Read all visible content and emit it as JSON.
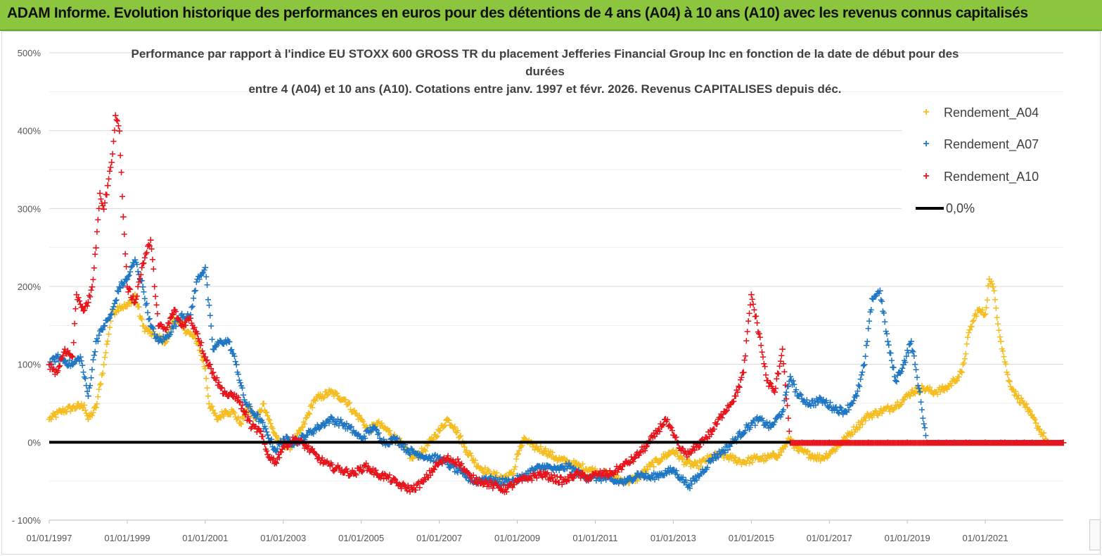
{
  "banner": {
    "title": "ADAM Informe. Evolution historique des performances en euros pour des détentions de 4 ans (A04) à 10 ans (A10) avec les revenus connus capitalisés"
  },
  "chart_data": {
    "type": "scatter",
    "title_lines": [
      "Performance par rapport à l'indice EU STOXX 600 GROSS TR  du placement Jefferies Financial Group Inc en fonction de la date de début pour des",
      "durées",
      "entre 4 (A04) et 10 ans (A10). Cotations entre janv. 1997 et févr. 2026. Revenus CAPITALISES depuis déc."
    ],
    "xlabel": "",
    "ylabel": "",
    "x_range": [
      1997.0,
      2023.0
    ],
    "ylim": [
      -100,
      500
    ],
    "yticks": [
      -100,
      0,
      100,
      200,
      300,
      400,
      500
    ],
    "ytick_labels": [
      "- 100%",
      "0%",
      "100%",
      "200%",
      "300%",
      "400%",
      "500%"
    ],
    "xticks": [
      1997,
      1999,
      2001,
      2003,
      2005,
      2007,
      2009,
      2011,
      2013,
      2015,
      2017,
      2019,
      2021
    ],
    "xtick_labels": [
      "01/01/1997",
      "01/01/1999",
      "01/01/2001",
      "01/01/2003",
      "01/01/2005",
      "01/01/2007",
      "01/01/2009",
      "01/01/2011",
      "01/01/2013",
      "01/01/2015",
      "01/01/2017",
      "01/01/2019",
      "01/01/2021"
    ],
    "grid": true,
    "legend_position": "top-right",
    "series": [
      {
        "name": "Rendement_A04",
        "color": "#f5bd1f",
        "marker": "+",
        "x": [
          1997.0,
          1997.3,
          1997.6,
          1997.9,
          1998.0,
          1998.2,
          1998.4,
          1998.6,
          1998.8,
          1999.0,
          1999.2,
          1999.4,
          1999.6,
          1999.8,
          2000.0,
          2000.2,
          2000.4,
          2000.6,
          2000.8,
          2001.0,
          2001.1,
          2001.3,
          2001.5,
          2001.7,
          2001.9,
          2002.1,
          2002.3,
          2002.5,
          2002.7,
          2002.9,
          2003.2,
          2003.5,
          2003.8,
          2004.0,
          2004.2,
          2004.4,
          2004.6,
          2004.8,
          2005.0,
          2005.2,
          2005.4,
          2005.7,
          2006.0,
          2006.3,
          2006.6,
          2006.9,
          2007.0,
          2007.2,
          2007.4,
          2007.7,
          2008.0,
          2008.3,
          2008.6,
          2008.9,
          2009.0,
          2009.2,
          2009.4,
          2009.7,
          2010.0,
          2010.3,
          2010.6,
          2010.9,
          2011.2,
          2011.5,
          2011.8,
          2012.1,
          2012.4,
          2012.7,
          2013.0,
          2013.3,
          2013.6,
          2013.9,
          2014.2,
          2014.5,
          2014.8,
          2015.1,
          2015.4,
          2015.7,
          2016.0,
          2016.2,
          2016.5,
          2016.8,
          2017.1,
          2017.4,
          2017.7,
          2018.0,
          2018.3,
          2018.6,
          2018.9,
          2019.1,
          2019.4,
          2019.7,
          2020.0,
          2020.2,
          2020.4,
          2020.6,
          2020.8,
          2021.0,
          2021.1,
          2021.2,
          2021.4,
          2021.6,
          2021.8,
          2022.0,
          2022.1,
          2022.3,
          2022.6,
          2023.0
        ],
        "y": [
          30,
          40,
          45,
          48,
          30,
          45,
          100,
          165,
          175,
          175,
          190,
          150,
          140,
          135,
          130,
          160,
          150,
          140,
          130,
          95,
          50,
          30,
          40,
          40,
          25,
          45,
          30,
          50,
          20,
          0,
          -5,
          20,
          55,
          60,
          65,
          60,
          55,
          40,
          30,
          15,
          25,
          15,
          0,
          -20,
          -10,
          10,
          15,
          30,
          20,
          -10,
          -30,
          -40,
          -45,
          -40,
          -15,
          5,
          -5,
          -10,
          -20,
          -25,
          -30,
          -35,
          -40,
          -45,
          -50,
          -45,
          -30,
          -20,
          -10,
          -25,
          -30,
          -20,
          -15,
          -20,
          -25,
          -20,
          -20,
          -15,
          5,
          -10,
          -15,
          -20,
          -10,
          5,
          20,
          35,
          40,
          45,
          55,
          65,
          70,
          65,
          70,
          80,
          90,
          145,
          170,
          165,
          210,
          200,
          130,
          80,
          60,
          50,
          40,
          25,
          0,
          0
        ]
      },
      {
        "name": "Rendement_A07",
        "color": "#1f77c4",
        "marker": "+",
        "x": [
          1997.0,
          1997.2,
          1997.4,
          1997.6,
          1997.8,
          1998.0,
          1998.2,
          1998.4,
          1998.6,
          1998.8,
          1999.0,
          1999.2,
          1999.4,
          1999.6,
          1999.8,
          2000.0,
          2000.2,
          2000.4,
          2000.6,
          2000.8,
          2001.0,
          2001.2,
          2001.4,
          2001.6,
          2001.8,
          2002.0,
          2002.2,
          2002.4,
          2002.6,
          2002.8,
          2003.0,
          2003.3,
          2003.6,
          2003.9,
          2004.2,
          2004.5,
          2004.8,
          2005.0,
          2005.3,
          2005.6,
          2005.9,
          2006.2,
          2006.5,
          2006.8,
          2007.0,
          2007.3,
          2007.6,
          2007.9,
          2008.2,
          2008.5,
          2008.8,
          2009.1,
          2009.4,
          2009.7,
          2010.0,
          2010.3,
          2010.6,
          2010.9,
          2011.2,
          2011.5,
          2011.8,
          2012.1,
          2012.4,
          2012.7,
          2013.0,
          2013.2,
          2013.4,
          2013.7,
          2014.0,
          2014.3,
          2014.6,
          2014.9,
          2015.2,
          2015.5,
          2015.8,
          2016.0,
          2016.2,
          2016.5,
          2016.8,
          2017.1,
          2017.4,
          2017.7,
          2017.9,
          2018.1,
          2018.3,
          2018.5,
          2018.7,
          2018.9,
          2019.1,
          2019.3,
          2019.5,
          2019.8,
          2020.2,
          2020.6,
          2021.0,
          2021.4,
          2021.8,
          2022.2,
          2022.6,
          2023.0
        ],
        "y": [
          100,
          110,
          105,
          100,
          110,
          60,
          130,
          150,
          165,
          200,
          210,
          235,
          200,
          150,
          130,
          135,
          150,
          165,
          160,
          210,
          225,
          120,
          130,
          130,
          100,
          55,
          40,
          30,
          10,
          -10,
          5,
          0,
          10,
          20,
          30,
          25,
          15,
          5,
          20,
          0,
          5,
          -10,
          -15,
          -20,
          -20,
          -30,
          -40,
          -50,
          -45,
          -50,
          -50,
          -45,
          -35,
          -30,
          -35,
          -30,
          -40,
          -45,
          -45,
          -50,
          -50,
          -40,
          -45,
          -40,
          -35,
          -45,
          -55,
          -40,
          -20,
          -10,
          5,
          20,
          30,
          20,
          40,
          85,
          60,
          50,
          55,
          45,
          40,
          60,
          100,
          185,
          195,
          130,
          80,
          100,
          130,
          70,
          0,
          0,
          0,
          0,
          0,
          0,
          0,
          0,
          0,
          0
        ]
      },
      {
        "name": "Rendement_A10",
        "color": "#e8141c",
        "marker": "+",
        "x": [
          1997.0,
          1997.2,
          1997.4,
          1997.6,
          1997.7,
          1997.9,
          1998.0,
          1998.1,
          1998.2,
          1998.3,
          1998.4,
          1998.5,
          1998.6,
          1998.7,
          1998.8,
          1998.9,
          1999.0,
          1999.2,
          1999.4,
          1999.6,
          1999.8,
          2000.0,
          2000.2,
          2000.4,
          2000.6,
          2000.8,
          2001.0,
          2001.2,
          2001.4,
          2001.6,
          2001.8,
          2002.0,
          2002.2,
          2002.4,
          2002.6,
          2002.8,
          2003.0,
          2003.3,
          2003.6,
          2003.9,
          2004.2,
          2004.5,
          2004.8,
          2005.1,
          2005.4,
          2005.7,
          2006.0,
          2006.3,
          2006.6,
          2006.9,
          2007.2,
          2007.5,
          2007.8,
          2008.1,
          2008.4,
          2008.7,
          2009.0,
          2009.3,
          2009.6,
          2009.9,
          2010.2,
          2010.5,
          2010.8,
          2011.1,
          2011.4,
          2011.7,
          2012.0,
          2012.3,
          2012.6,
          2012.8,
          2013.0,
          2013.2,
          2013.4,
          2013.7,
          2014.0,
          2014.3,
          2014.6,
          2014.8,
          2015.0,
          2015.2,
          2015.4,
          2015.6,
          2015.8,
          2016.0,
          2016.3,
          2016.6,
          2017.0,
          2017.5,
          2018.0,
          2018.5,
          2019.0,
          2019.5,
          2020.0,
          2020.5,
          2021.0,
          2021.5,
          2022.0,
          2022.5,
          2023.0
        ],
        "y": [
          100,
          90,
          120,
          110,
          190,
          170,
          180,
          200,
          250,
          320,
          300,
          330,
          360,
          420,
          400,
          290,
          200,
          180,
          230,
          260,
          150,
          145,
          170,
          150,
          160,
          140,
          110,
          90,
          70,
          60,
          60,
          40,
          20,
          15,
          -15,
          -25,
          -5,
          5,
          -5,
          -20,
          -30,
          -35,
          -40,
          -30,
          -40,
          -45,
          -55,
          -60,
          -50,
          -30,
          -20,
          -25,
          -45,
          -50,
          -55,
          -60,
          -50,
          -45,
          -40,
          -45,
          -50,
          -40,
          -45,
          -40,
          -40,
          -30,
          -20,
          -5,
          15,
          30,
          10,
          -10,
          -15,
          0,
          15,
          40,
          60,
          90,
          190,
          140,
          80,
          65,
          120,
          0,
          0,
          0,
          0,
          0,
          0,
          0,
          0,
          0,
          0,
          0,
          0,
          0,
          0,
          0,
          0
        ]
      }
    ],
    "reference_line": {
      "name": "0,0%",
      "value": 0,
      "color": "#000000"
    }
  },
  "legend": {
    "items": [
      {
        "label": "Rendement_A04",
        "symbol": "+",
        "color": "#f5bd1f"
      },
      {
        "label": "Rendement_A07",
        "symbol": "+",
        "color": "#1f77c4"
      },
      {
        "label": "Rendement_A10",
        "symbol": "+",
        "color": "#e8141c"
      },
      {
        "label": "0,0%",
        "symbol": "line",
        "color": "#000000"
      }
    ]
  }
}
